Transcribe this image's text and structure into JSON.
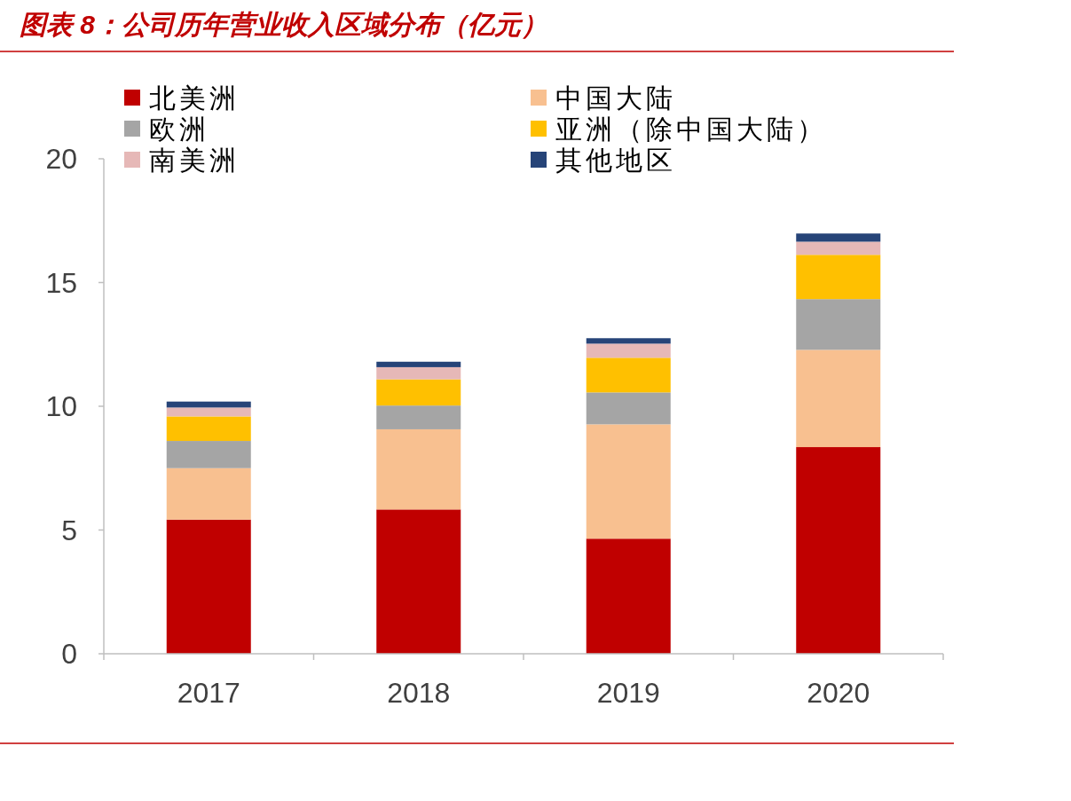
{
  "chart_data": {
    "type": "bar",
    "stacked": true,
    "title": "图表 8：公司历年营业收入区域分布（亿元）",
    "categories": [
      "2017",
      "2018",
      "2019",
      "2020"
    ],
    "series": [
      {
        "name": "北美洲",
        "color": "#c00000",
        "values": [
          5.42,
          5.83,
          4.65,
          8.35
        ]
      },
      {
        "name": "中国大陆",
        "color": "#f8c090",
        "values": [
          2.08,
          3.24,
          4.62,
          3.93
        ]
      },
      {
        "name": "欧洲",
        "color": "#a5a5a5",
        "values": [
          1.1,
          0.96,
          1.29,
          2.05
        ]
      },
      {
        "name": "亚洲（除中国大陆）",
        "color": "#ffc000",
        "values": [
          0.99,
          1.06,
          1.4,
          1.79
        ]
      },
      {
        "name": "南美洲",
        "color": "#e6b8b7",
        "values": [
          0.36,
          0.49,
          0.57,
          0.53
        ]
      },
      {
        "name": "其他地区",
        "color": "#264478",
        "values": [
          0.24,
          0.22,
          0.22,
          0.33
        ]
      }
    ],
    "ylim": [
      0,
      20
    ],
    "yticks": [
      0,
      5,
      10,
      15,
      20
    ],
    "grid": false,
    "legend": "top"
  }
}
